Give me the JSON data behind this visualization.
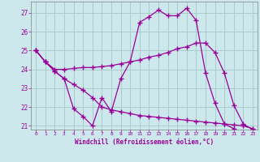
{
  "xlabel": "Windchill (Refroidissement éolien,°C)",
  "bg_color": "#cce8ec",
  "grid_color": "#aacccc",
  "line_color": "#990099",
  "xlim": [
    -0.5,
    23.5
  ],
  "ylim": [
    20.8,
    27.6
  ],
  "yticks": [
    21,
    22,
    23,
    24,
    25,
    26,
    27
  ],
  "xticks": [
    0,
    1,
    2,
    3,
    4,
    5,
    6,
    7,
    8,
    9,
    10,
    11,
    12,
    13,
    14,
    15,
    16,
    17,
    18,
    19,
    20,
    21,
    22,
    23
  ],
  "lines": [
    {
      "x": [
        0,
        1,
        2,
        3,
        4,
        5,
        6,
        7,
        8,
        9,
        10,
        11,
        12,
        13,
        14,
        15,
        16,
        17,
        18,
        19,
        20,
        21
      ],
      "y": [
        25.0,
        24.4,
        23.9,
        23.5,
        21.9,
        21.5,
        21.0,
        22.5,
        21.75,
        23.5,
        24.4,
        26.5,
        26.8,
        27.15,
        26.85,
        26.85,
        27.25,
        26.6,
        23.8,
        22.2,
        21.1,
        20.85
      ]
    },
    {
      "x": [
        0,
        1,
        2,
        3,
        4,
        5,
        6,
        7,
        8,
        9,
        10,
        11,
        12,
        13,
        14,
        15,
        16,
        17,
        18,
        19,
        20,
        21,
        22,
        23
      ],
      "y": [
        25.0,
        24.4,
        24.0,
        24.0,
        24.05,
        24.1,
        24.1,
        24.15,
        24.2,
        24.3,
        24.4,
        24.5,
        24.65,
        24.75,
        24.9,
        25.1,
        25.2,
        25.4,
        25.4,
        24.9,
        23.8,
        22.1,
        21.1,
        20.8
      ]
    },
    {
      "x": [
        0,
        1,
        2,
        3,
        4,
        5,
        6,
        7,
        8,
        9,
        10,
        11,
        12,
        13,
        14,
        15,
        16,
        17,
        18,
        19,
        20,
        21,
        22,
        23
      ],
      "y": [
        25.0,
        24.4,
        23.9,
        23.5,
        23.2,
        22.9,
        22.5,
        22.0,
        21.85,
        21.75,
        21.65,
        21.55,
        21.5,
        21.45,
        21.4,
        21.35,
        21.3,
        21.25,
        21.2,
        21.15,
        21.1,
        21.05,
        21.0,
        20.85
      ]
    }
  ]
}
